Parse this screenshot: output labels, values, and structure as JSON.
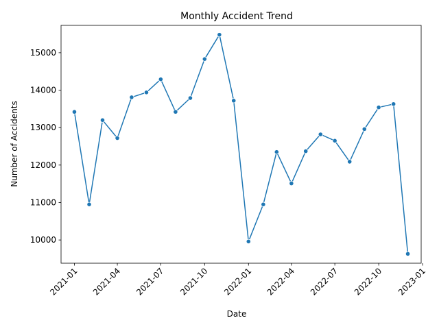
{
  "chart_data": {
    "type": "line",
    "title": "Monthly Accident Trend",
    "xlabel": "Date",
    "ylabel": "Number of Accidents",
    "x": [
      "2021-01-01",
      "2021-02-01",
      "2021-03-01",
      "2021-04-01",
      "2021-05-01",
      "2021-06-01",
      "2021-07-01",
      "2021-08-01",
      "2021-09-01",
      "2021-10-01",
      "2021-11-01",
      "2021-12-01",
      "2022-01-01",
      "2022-02-01",
      "2022-03-01",
      "2022-04-01",
      "2022-05-01",
      "2022-06-01",
      "2022-07-01",
      "2022-08-01",
      "2022-09-01",
      "2022-10-01",
      "2022-11-01",
      "2022-12-01"
    ],
    "values": [
      13420,
      10950,
      13200,
      12720,
      13810,
      13940,
      14290,
      13420,
      13790,
      14830,
      15480,
      13720,
      9960,
      10950,
      12350,
      11510,
      12370,
      12820,
      12650,
      12090,
      12960,
      13540,
      13630,
      9630
    ],
    "x_ticks": [
      "2021-01",
      "2021-04",
      "2021-07",
      "2021-10",
      "2022-01",
      "2022-04",
      "2022-07",
      "2022-10",
      "2023-01"
    ],
    "y_ticks": [
      10000,
      11000,
      12000,
      13000,
      14000,
      15000
    ],
    "xlim": [
      "2020-12-04",
      "2022-12-29"
    ],
    "ylim": [
      9380,
      15730
    ],
    "line_color": "#1f77b4",
    "grid": false,
    "legend": false
  }
}
